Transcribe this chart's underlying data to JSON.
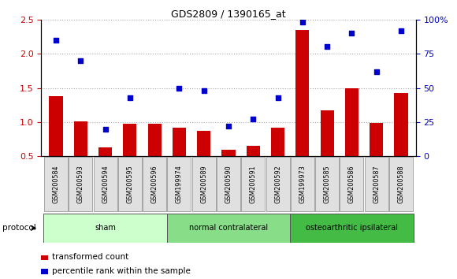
{
  "title": "GDS2809 / 1390165_at",
  "categories": [
    "GSM200584",
    "GSM200593",
    "GSM200594",
    "GSM200595",
    "GSM200596",
    "GSM199974",
    "GSM200589",
    "GSM200590",
    "GSM200591",
    "GSM200592",
    "GSM199973",
    "GSM200585",
    "GSM200586",
    "GSM200587",
    "GSM200588"
  ],
  "bar_values": [
    1.38,
    1.01,
    0.63,
    0.97,
    0.97,
    0.92,
    0.87,
    0.59,
    0.65,
    0.92,
    2.35,
    1.17,
    1.5,
    0.99,
    1.42
  ],
  "scatter_values": [
    85,
    70,
    20,
    43,
    null,
    50,
    48,
    22,
    27,
    43,
    98,
    80,
    90,
    62,
    92
  ],
  "bar_color": "#cc0000",
  "scatter_color": "#0000cc",
  "ylim_left": [
    0.5,
    2.5
  ],
  "ylim_right": [
    0,
    100
  ],
  "yticks_left": [
    0.5,
    1.0,
    1.5,
    2.0,
    2.5
  ],
  "yticks_right": [
    0,
    25,
    50,
    75,
    100
  ],
  "ytick_labels_right": [
    "0",
    "25",
    "50",
    "75",
    "100%"
  ],
  "groups": [
    {
      "label": "sham",
      "start": 0,
      "end": 5,
      "color": "#ccffcc"
    },
    {
      "label": "normal contralateral",
      "start": 5,
      "end": 10,
      "color": "#88dd88"
    },
    {
      "label": "osteoarthritic ipsilateral",
      "start": 10,
      "end": 15,
      "color": "#44bb44"
    }
  ],
  "protocol_label": "protocol",
  "legend_bar_label": "transformed count",
  "legend_scatter_label": "percentile rank within the sample",
  "grid_color": "#aaaaaa",
  "background_color": "#ffffff",
  "plot_bg_color": "#ffffff",
  "tick_label_color_left": "#cc0000",
  "tick_label_color_right": "#0000cc",
  "xtick_bg_color": "#e0e0e0"
}
